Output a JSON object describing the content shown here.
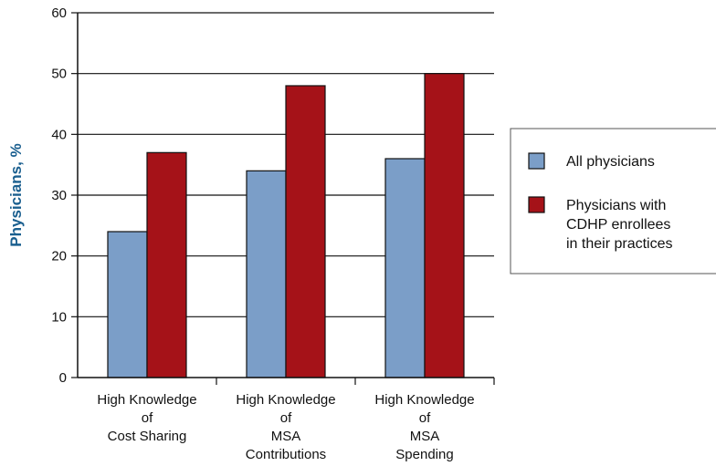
{
  "chart_data": {
    "type": "bar",
    "title": "",
    "xlabel": "",
    "ylabel": "Physicians, %",
    "ylim": [
      0,
      60
    ],
    "yticks": [
      0,
      10,
      20,
      30,
      40,
      50,
      60
    ],
    "grid": true,
    "legend_position": "right",
    "categories": [
      [
        "High Knowledge",
        "of",
        "Cost Sharing"
      ],
      [
        "High Knowledge",
        "of",
        "MSA",
        "Contributions"
      ],
      [
        "High Knowledge",
        "of",
        "MSA",
        "Spending"
      ]
    ],
    "series": [
      {
        "name": "All physicians",
        "color": "#7b9ec8",
        "values": [
          24,
          34,
          36
        ]
      },
      {
        "name": "Physicians with CDHP enrollees in their practices",
        "legend_lines": [
          "Physicians with",
          "CDHP enrollees",
          "in their practices"
        ],
        "color": "#a51218",
        "values": [
          37,
          48,
          50
        ]
      }
    ]
  }
}
